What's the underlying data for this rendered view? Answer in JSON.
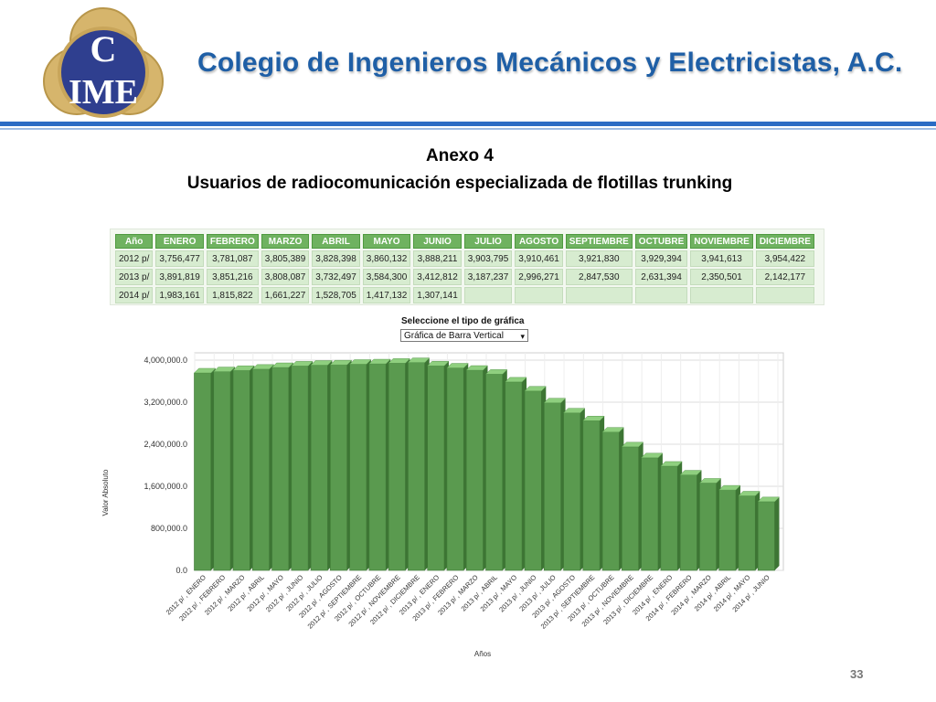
{
  "header": {
    "org_title": "Colegio de Ingenieros Mecánicos y Electricistas, A.C.",
    "logo_letters": "CIME"
  },
  "annex": {
    "line1": "Anexo 4",
    "line2": "Usuarios de radiocomunicación especializada de flotillas trunking"
  },
  "table": {
    "headers": [
      "Año",
      "ENERO",
      "FEBRERO",
      "MARZO",
      "ABRIL",
      "MAYO",
      "JUNIO",
      "JULIO",
      "AGOSTO",
      "SEPTIEMBRE",
      "OCTUBRE",
      "NOVIEMBRE",
      "DICIEMBRE"
    ],
    "rows": [
      [
        "2012 p/",
        "3,756,477",
        "3,781,087",
        "3,805,389",
        "3,828,398",
        "3,860,132",
        "3,888,211",
        "3,903,795",
        "3,910,461",
        "3,921,830",
        "3,929,394",
        "3,941,613",
        "3,954,422"
      ],
      [
        "2013 p/",
        "3,891,819",
        "3,851,216",
        "3,808,087",
        "3,732,497",
        "3,584,300",
        "3,412,812",
        "3,187,237",
        "2,996,271",
        "2,847,530",
        "2,631,394",
        "2,350,501",
        "2,142,177"
      ],
      [
        "2014 p/",
        "1,983,161",
        "1,815,822",
        "1,661,227",
        "1,528,705",
        "1,417,132",
        "1,307,141",
        "",
        "",
        "",
        "",
        "",
        ""
      ]
    ]
  },
  "selector": {
    "label": "Seleccione el tipo de gráfica",
    "value": "Gráfica de Barra Vertical"
  },
  "chart_data": {
    "type": "bar",
    "xlabel": "Años",
    "ylabel": "Valor Absoluto",
    "ylim": [
      0,
      4000000
    ],
    "yticks": [
      "0.0",
      "800,000.0",
      "1,600,000.0",
      "2,400,000.0",
      "3,200,000.0",
      "4,000,000.0"
    ],
    "ytick_values": [
      0,
      800000,
      1600000,
      2400000,
      3200000,
      4000000
    ],
    "grid": true,
    "bar_color": "#5a9a4f",
    "categories": [
      "2012 p/ , ENERO",
      "2012 p/ , FEBRERO",
      "2012 p/ , MARZO",
      "2012 p/ , ABRIL",
      "2012 p/ , MAYO",
      "2012 p/ , JUNIO",
      "2012 p/ , JULIO",
      "2012 p/ , AGOSTO",
      "2012 p/ , SEPTIEMBRE",
      "2012 p/ , OCTUBRE",
      "2012 p/ , NOVIEMBRE",
      "2012 p/ , DICIEMBRE",
      "2013 p/ , ENERO",
      "2013 p/ , FEBRERO",
      "2013 p/ , MARZO",
      "2013 p/ , ABRIL",
      "2013 p/ , MAYO",
      "2013 p/ , JUNIO",
      "2013 p/ , JULIO",
      "2013 p/ , AGOSTO",
      "2013 p/ , SEPTIEMBRE",
      "2013 p/ , OCTUBRE",
      "2013 p/ , NOVIEMBRE",
      "2013 p/ , DICIEMBRE",
      "2014 p/ , ENERO",
      "2014 p/ , FEBRERO",
      "2014 p/ , MARZO",
      "2014 p/ , ABRIL",
      "2014 p/ , MAYO",
      "2014 p/ , JUNIO"
    ],
    "values": [
      3756477,
      3781087,
      3805389,
      3828398,
      3860132,
      3888211,
      3903795,
      3910461,
      3921830,
      3929394,
      3941613,
      3954422,
      3891819,
      3851216,
      3808087,
      3732497,
      3584300,
      3412812,
      3187237,
      2996271,
      2847530,
      2631394,
      2350501,
      2142177,
      1983161,
      1815822,
      1661227,
      1528705,
      1417132,
      1307141
    ]
  },
  "page_number": "33"
}
